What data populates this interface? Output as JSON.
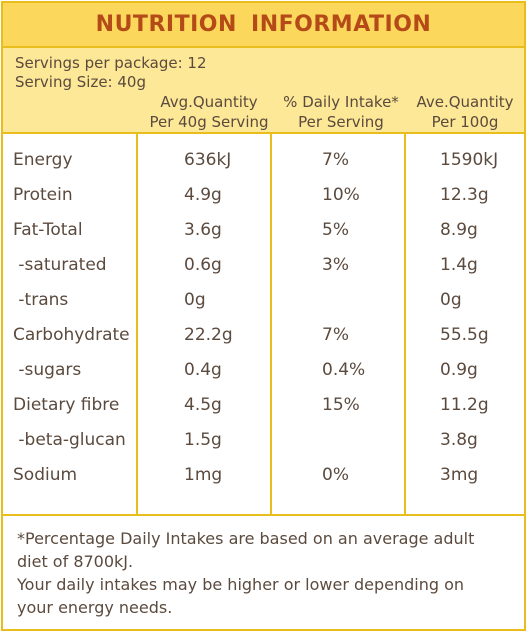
{
  "title": "NUTRITION  INFORMATION",
  "servings": {
    "per_package": "Servings per package: 12",
    "serving_size": "Serving Size: 40g"
  },
  "columns": [
    {
      "line1": "Avg.Quantity",
      "line2": "Per 40g Serving"
    },
    {
      "line1": "% Daily Intake*",
      "line2": "Per Serving"
    },
    {
      "line1": "Ave.Quantity",
      "line2": "Per 100g"
    }
  ],
  "rows": [
    {
      "label": "Energy",
      "per_serving": "636kJ",
      "daily_intake": "7%",
      "per_100g": "1590kJ"
    },
    {
      "label": "Protein",
      "per_serving": "4.9g",
      "daily_intake": "10%",
      "per_100g": "12.3g"
    },
    {
      "label": "Fat-Total",
      "per_serving": "3.6g",
      "daily_intake": "5%",
      "per_100g": "8.9g"
    },
    {
      "label": " -saturated",
      "per_serving": "0.6g",
      "daily_intake": "3%",
      "per_100g": "1.4g"
    },
    {
      "label": " -trans",
      "per_serving": "0g",
      "daily_intake": "",
      "per_100g": "0g"
    },
    {
      "label": "Carbohydrate",
      "per_serving": "22.2g",
      "daily_intake": "7%",
      "per_100g": "55.5g"
    },
    {
      "label": " -sugars",
      "per_serving": "0.4g",
      "daily_intake": "0.4%",
      "per_100g": "0.9g"
    },
    {
      "label": "Dietary fibre",
      "per_serving": "4.5g",
      "daily_intake": "15%",
      "per_100g": "11.2g"
    },
    {
      "label": " -beta-glucan",
      "per_serving": "1.5g",
      "daily_intake": "",
      "per_100g": "3.8g"
    },
    {
      "label": "Sodium",
      "per_serving": "1mg",
      "daily_intake": "0%",
      "per_100g": "3mg"
    }
  ],
  "footnote": [
    "*Percentage Daily Intakes are based on an average adult",
    "diet of 8700kJ.",
    "Your daily intakes may be higher or lower depending on",
    "your energy needs."
  ],
  "colors": {
    "border": "#e9bd1c",
    "title_band": "#fbd85b",
    "info_band": "#fce896",
    "title_text": "#b44a18",
    "body_text": "#5b4a3e"
  }
}
